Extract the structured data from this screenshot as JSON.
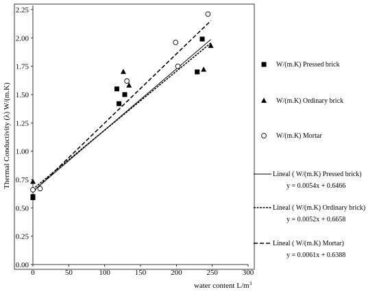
{
  "chart_data": {
    "type": "scatter",
    "title": "",
    "xlabel": "water content L/m",
    "xlabel_sup": "3",
    "ylabel": "Thermal Conductivity  (λ)  W/(m.K)",
    "xlim": [
      0,
      300
    ],
    "ylim": [
      0,
      2.25
    ],
    "x_ticks": [
      "0",
      "50",
      "100",
      "150",
      "200",
      "250",
      "300"
    ],
    "y_ticks": [
      "0.00",
      "0.25",
      "0.50",
      "0.75",
      "1.00",
      "1.25",
      "1.50",
      "1.75",
      "2.00",
      "2.25"
    ],
    "grid": false,
    "legend_position": "right",
    "series": [
      {
        "name": "W/(m.K)   Pressed brick",
        "marker": "square",
        "points": [
          [
            0,
            0.6
          ],
          [
            0,
            0.59
          ],
          [
            117,
            1.55
          ],
          [
            120,
            1.42
          ],
          [
            128,
            1.5
          ],
          [
            229,
            1.7
          ],
          [
            236,
            1.99
          ]
        ]
      },
      {
        "name": "W/(m.K)   Ordinary brick",
        "marker": "triangle",
        "points": [
          [
            0,
            0.73
          ],
          [
            126,
            1.7
          ],
          [
            134,
            1.58
          ],
          [
            238,
            1.72
          ],
          [
            248,
            1.93
          ]
        ]
      },
      {
        "name": "W/(m.K)   Mortar",
        "marker": "circle",
        "points": [
          [
            0,
            0.66
          ],
          [
            10,
            0.67
          ],
          [
            131,
            1.62
          ],
          [
            199,
            1.96
          ],
          [
            202,
            1.75
          ],
          [
            244,
            2.21
          ]
        ]
      }
    ],
    "trendlines": [
      {
        "name": "Lineal ( W/(m.K)   Pressed brick)",
        "equation": "y = 0.0054x + 0.6466",
        "slope": 0.0054,
        "intercept": 0.6466,
        "x_range": [
          0,
          248
        ],
        "dash": "solid"
      },
      {
        "name": "Lineal ( W/(m.K)   Ordinary brick)",
        "equation": "y = 0.0052x + 0.6658",
        "slope": 0.0052,
        "intercept": 0.6658,
        "x_range": [
          0,
          248
        ],
        "dash": "dotted"
      },
      {
        "name": "Lineal ( W/(m.K)   Mortar)",
        "equation": "y = 0.0061x + 0.6388",
        "slope": 0.0061,
        "intercept": 0.6388,
        "x_range": [
          0,
          248
        ],
        "dash": "dashed"
      }
    ]
  }
}
